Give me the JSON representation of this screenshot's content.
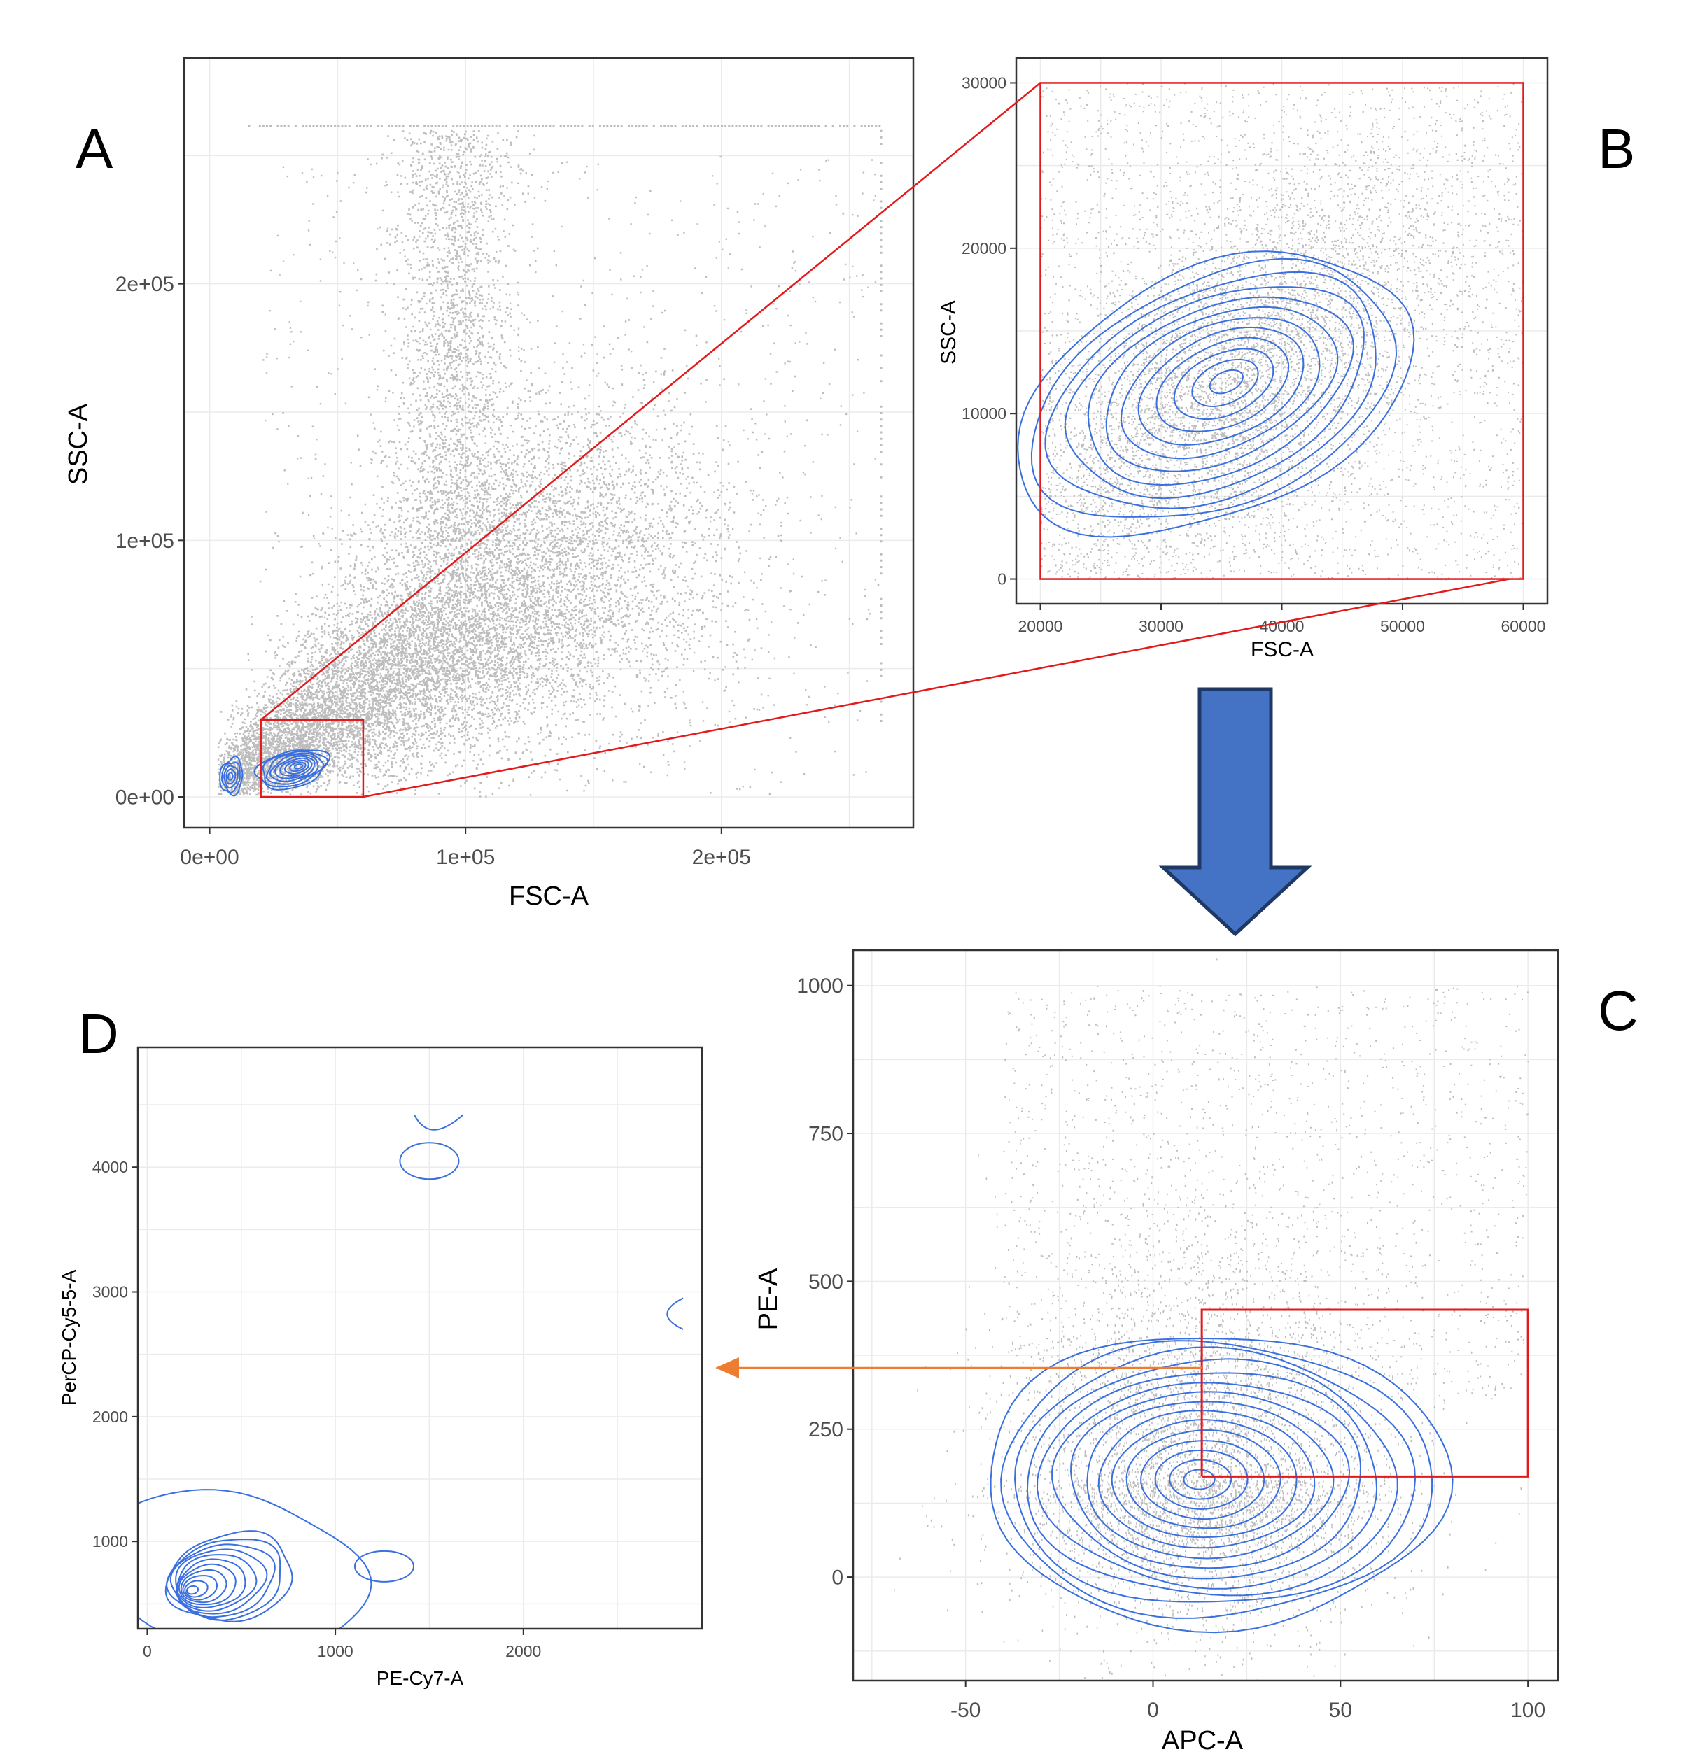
{
  "colors": {
    "points": "#bdbdbd",
    "contour": "#3a6fe0",
    "gate": "#e31a1c",
    "grid": "#ebebeb",
    "frame": "#333333",
    "big_arrow_fill": "#4472c4",
    "big_arrow_stroke": "#1f3864",
    "small_arrow": "#ed7d31"
  },
  "chart_data": [
    {
      "panel": "A",
      "type": "scatter",
      "xlabel": "FSC-A",
      "ylabel": "SSC-A",
      "xlim": [
        -10000,
        275000
      ],
      "ylim": [
        -12000,
        288000
      ],
      "xticks": [
        0,
        100000,
        200000
      ],
      "xtick_labels": [
        "0e+00",
        "1e+05",
        "2e+05"
      ],
      "yticks": [
        0,
        100000,
        200000
      ],
      "ytick_labels": [
        "0e+00",
        "1e+05",
        "2e+05"
      ],
      "grid": true,
      "gate": {
        "x": [
          20000,
          60000
        ],
        "y": [
          0,
          30000
        ]
      },
      "density_peak": {
        "x": 35000,
        "y": 12000
      },
      "secondary_peak": {
        "x": 8000,
        "y": 8000
      },
      "saturation_row_y": 262000
    },
    {
      "panel": "B",
      "type": "scatter",
      "xlabel": "FSC-A",
      "ylabel": "SSC-A",
      "xlim": [
        18000,
        62000
      ],
      "ylim": [
        -1500,
        31500
      ],
      "xticks": [
        20000,
        30000,
        40000,
        50000,
        60000
      ],
      "xtick_labels": [
        "20000",
        "30000",
        "40000",
        "50000",
        "60000"
      ],
      "yticks": [
        0,
        10000,
        20000,
        30000
      ],
      "ytick_labels": [
        "0",
        "10000",
        "20000",
        "30000"
      ],
      "grid": true,
      "gate": {
        "x": [
          20000,
          60000
        ],
        "y": [
          0,
          30000
        ]
      },
      "density_peak": {
        "x": 35500,
        "y": 12000
      }
    },
    {
      "panel": "C",
      "type": "scatter",
      "xlabel": "APC-A",
      "ylabel": "PE-A",
      "xlim": [
        -80,
        108
      ],
      "ylim": [
        -175,
        1060
      ],
      "xticks": [
        -50,
        0,
        50,
        100
      ],
      "xtick_labels": [
        "-50",
        "0",
        "50",
        "100"
      ],
      "yticks": [
        0,
        250,
        500,
        750,
        1000
      ],
      "ytick_labels": [
        "0",
        "250",
        "500",
        "750",
        "1000"
      ],
      "grid": true,
      "gate": {
        "x": [
          13,
          100
        ],
        "y": [
          170,
          452
        ]
      },
      "density_peak": {
        "x": 12,
        "y": 165
      }
    },
    {
      "panel": "D",
      "type": "scatter",
      "xlabel": "PE-Cy7-A",
      "ylabel": "PerCP-Cy5-5-A",
      "xlim": [
        -50,
        2950
      ],
      "ylim": [
        300,
        4960
      ],
      "xticks": [
        0,
        1000,
        2000
      ],
      "xtick_labels": [
        "0",
        "1000",
        "2000"
      ],
      "yticks": [
        1000,
        2000,
        3000,
        4000
      ],
      "ytick_labels": [
        "1000",
        "2000",
        "3000",
        "4000"
      ],
      "grid": true,
      "density_peak": {
        "x": 220,
        "y": 600
      }
    }
  ]
}
